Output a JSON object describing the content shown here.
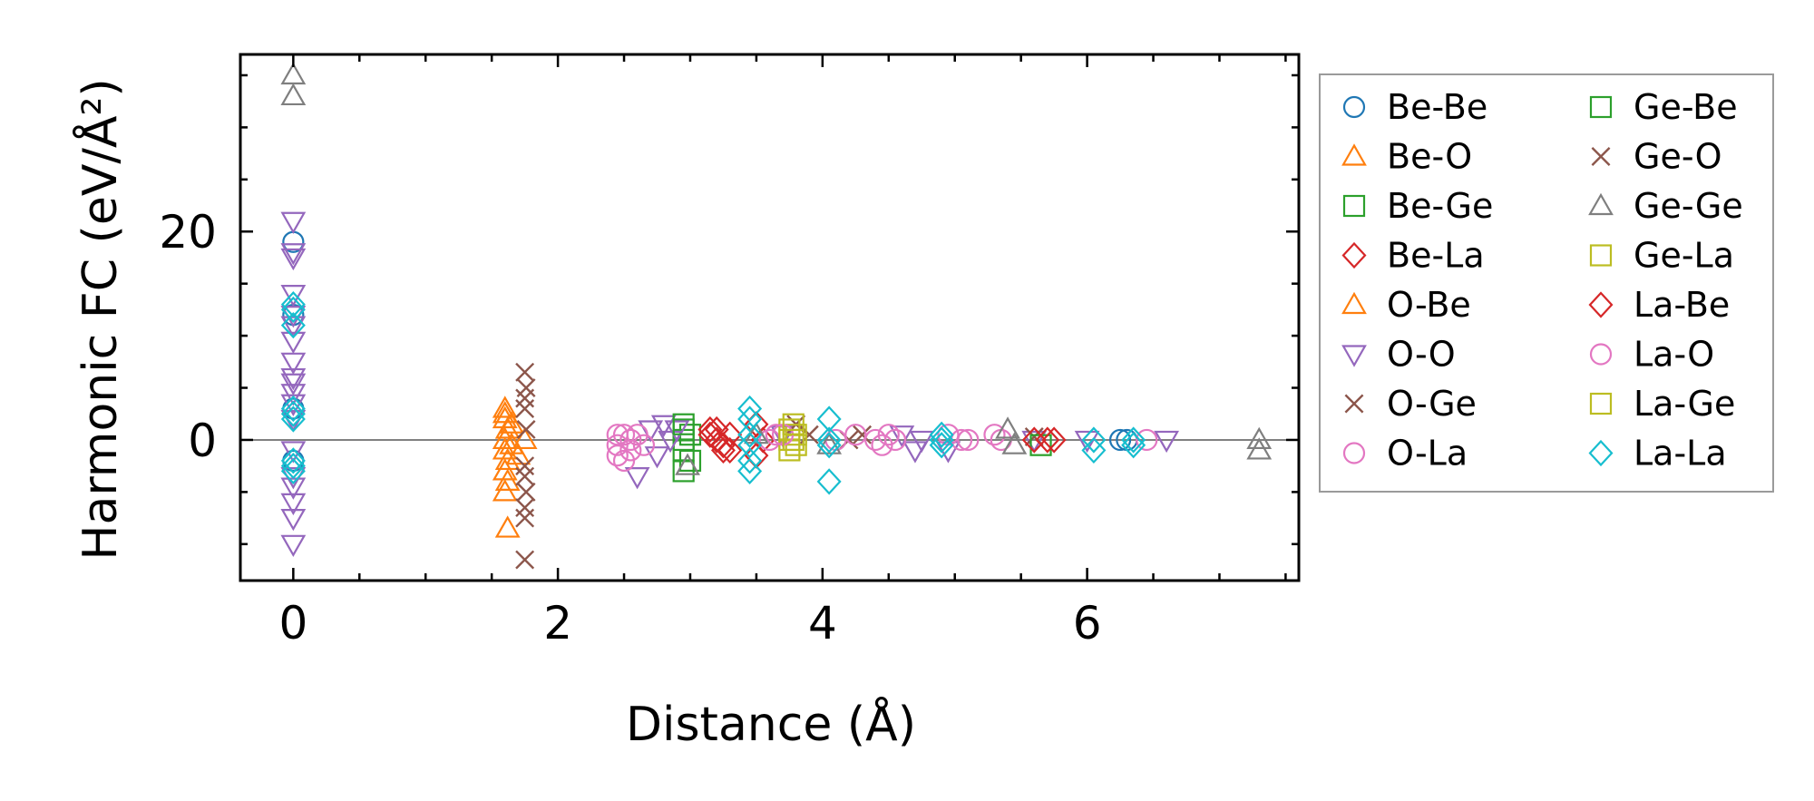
{
  "chart_data": {
    "type": "scatter",
    "xlabel": "Distance (Å)",
    "ylabel": "Harmonic FC (eV/Å²)",
    "xlim": [
      -0.4,
      7.6
    ],
    "ylim": [
      -13.5,
      37
    ],
    "x_ticks": [
      0,
      2,
      4,
      6
    ],
    "x_tick_labels": [
      "0",
      "2",
      "4",
      "6"
    ],
    "x_minor_step": 0.5,
    "y_ticks": [
      0,
      20
    ],
    "y_tick_labels": [
      "0",
      "20"
    ],
    "y_minor_step": 5,
    "zero_line": true,
    "legend_position": "outside-right",
    "series": [
      {
        "name": "Be-Be",
        "marker": "circle",
        "color": "#1f77b4",
        "points": [
          [
            0,
            3
          ],
          [
            0,
            19
          ],
          [
            0,
            -2
          ],
          [
            0,
            12
          ],
          [
            6.25,
            0
          ],
          [
            6.3,
            0
          ]
        ]
      },
      {
        "name": "Be-O",
        "marker": "triangle-up",
        "color": "#ff7f0e",
        "points": [
          [
            1.6,
            3
          ],
          [
            1.6,
            2
          ],
          [
            1.62,
            1
          ],
          [
            1.6,
            0
          ],
          [
            1.6,
            -1
          ],
          [
            1.62,
            -2
          ],
          [
            1.6,
            -3
          ],
          [
            1.62,
            -4
          ],
          [
            1.6,
            -5
          ],
          [
            1.62,
            -8.5
          ]
        ]
      },
      {
        "name": "Be-Ge",
        "marker": "square",
        "color": "#2ca02c",
        "points": [
          [
            2.95,
            1
          ],
          [
            2.95,
            0
          ],
          [
            2.95,
            -1
          ],
          [
            2.95,
            -3
          ],
          [
            3.0,
            0.5
          ]
        ]
      },
      {
        "name": "Be-La",
        "marker": "diamond",
        "color": "#d62728",
        "points": [
          [
            3.15,
            1
          ],
          [
            3.2,
            0
          ],
          [
            3.25,
            -1
          ],
          [
            3.3,
            0.5
          ],
          [
            3.5,
            1.5
          ],
          [
            3.5,
            -1.5
          ],
          [
            3.55,
            0
          ]
        ]
      },
      {
        "name": "O-Be",
        "marker": "triangle-up",
        "color": "#ff7f0e",
        "points": [
          [
            1.6,
            2.5
          ],
          [
            1.65,
            1.5
          ],
          [
            1.65,
            -0.5
          ],
          [
            1.7,
            -1.5
          ],
          [
            1.75,
            0
          ]
        ]
      },
      {
        "name": "O-O",
        "marker": "triangle-down",
        "color": "#9467bd",
        "points": [
          [
            0,
            21
          ],
          [
            0,
            18
          ],
          [
            0,
            17.5
          ],
          [
            0,
            14
          ],
          [
            0,
            12
          ],
          [
            0,
            11
          ],
          [
            0,
            9.5
          ],
          [
            0,
            7.5
          ],
          [
            0,
            6
          ],
          [
            0,
            5.5
          ],
          [
            0,
            4.5
          ],
          [
            0,
            3.5
          ],
          [
            0,
            2
          ],
          [
            0,
            -1
          ],
          [
            0,
            -3.5
          ],
          [
            0,
            -4.5
          ],
          [
            0,
            -6
          ],
          [
            0,
            -7.5
          ],
          [
            0,
            -10
          ],
          [
            2.6,
            -3.5
          ],
          [
            2.7,
            1
          ],
          [
            2.75,
            -1.5
          ],
          [
            2.8,
            1.5
          ],
          [
            2.85,
            0
          ],
          [
            2.9,
            1
          ],
          [
            3.7,
            0.5
          ],
          [
            4.6,
            0.5
          ],
          [
            4.7,
            -1
          ],
          [
            4.75,
            0
          ],
          [
            4.95,
            -1
          ],
          [
            5.6,
            0
          ],
          [
            6.0,
            0
          ],
          [
            6.6,
            0
          ]
        ]
      },
      {
        "name": "O-Ge",
        "marker": "x",
        "color": "#8c564b",
        "points": [
          [
            1.75,
            6.5
          ],
          [
            1.75,
            4
          ],
          [
            1.75,
            3
          ],
          [
            1.75,
            -2.5
          ],
          [
            1.75,
            -3.5
          ],
          [
            1.75,
            -6.5
          ],
          [
            1.75,
            -7.5
          ],
          [
            1.75,
            -11.5
          ],
          [
            3.8,
            1.5
          ],
          [
            3.9,
            0.5
          ],
          [
            4.2,
            0
          ],
          [
            4.3,
            0.5
          ],
          [
            5.6,
            0.3
          ]
        ]
      },
      {
        "name": "O-La",
        "marker": "circle",
        "color": "#e377c2",
        "points": [
          [
            2.45,
            0.5
          ],
          [
            2.45,
            -0.5
          ],
          [
            2.45,
            -1.5
          ],
          [
            2.5,
            -2
          ],
          [
            2.55,
            0
          ],
          [
            2.6,
            0.5
          ],
          [
            2.65,
            -0.5
          ],
          [
            3.6,
            0
          ],
          [
            3.65,
            0.5
          ],
          [
            4.1,
            0
          ],
          [
            4.25,
            0.5
          ],
          [
            4.4,
            0
          ],
          [
            4.5,
            0.5
          ],
          [
            4.55,
            0
          ],
          [
            4.95,
            0.5
          ],
          [
            5.1,
            0
          ],
          [
            5.3,
            0.5
          ],
          [
            5.35,
            0
          ]
        ]
      },
      {
        "name": "Ge-Be",
        "marker": "square",
        "color": "#2ca02c",
        "points": [
          [
            2.95,
            1.5
          ],
          [
            3.0,
            -2
          ],
          [
            5.65,
            -0.5
          ]
        ]
      },
      {
        "name": "Ge-O",
        "marker": "x",
        "color": "#8c564b",
        "points": [
          [
            1.76,
            5
          ],
          [
            1.76,
            1
          ],
          [
            1.76,
            -5
          ]
        ]
      },
      {
        "name": "Ge-Ge",
        "marker": "triangle-up",
        "color": "#7f7f7f",
        "points": [
          [
            0,
            35
          ],
          [
            0,
            33
          ],
          [
            2.98,
            -2.5
          ],
          [
            3.5,
            0.5
          ],
          [
            4.05,
            -0.5
          ],
          [
            5.4,
            1
          ],
          [
            5.45,
            -0.5
          ],
          [
            7.3,
            0
          ],
          [
            7.3,
            -1
          ]
        ]
      },
      {
        "name": "Ge-La",
        "marker": "square",
        "color": "#bcbd22",
        "points": [
          [
            3.75,
            1
          ],
          [
            3.75,
            0
          ],
          [
            3.75,
            -1
          ],
          [
            3.8,
            0.5
          ],
          [
            3.8,
            -0.5
          ]
        ]
      },
      {
        "name": "La-Be",
        "marker": "diamond",
        "color": "#d62728",
        "points": [
          [
            3.15,
            0.5
          ],
          [
            3.2,
            1
          ],
          [
            3.25,
            -0.5
          ],
          [
            3.3,
            -1
          ],
          [
            5.6,
            0
          ],
          [
            5.7,
            0
          ],
          [
            5.75,
            0
          ]
        ]
      },
      {
        "name": "La-O",
        "marker": "circle",
        "color": "#e377c2",
        "points": [
          [
            2.5,
            0.5
          ],
          [
            2.55,
            -1
          ],
          [
            3.7,
            0.5
          ],
          [
            4.45,
            -0.5
          ],
          [
            5.05,
            0
          ],
          [
            6.45,
            0
          ]
        ]
      },
      {
        "name": "La-Ge",
        "marker": "square",
        "color": "#bcbd22",
        "points": [
          [
            3.78,
            0
          ],
          [
            3.78,
            1.5
          ]
        ]
      },
      {
        "name": "La-La",
        "marker": "diamond",
        "color": "#17becf",
        "points": [
          [
            0,
            13
          ],
          [
            0,
            12.5
          ],
          [
            0,
            11
          ],
          [
            0,
            3
          ],
          [
            0,
            2.5
          ],
          [
            0,
            2
          ],
          [
            0,
            -2
          ],
          [
            0,
            -2.5
          ],
          [
            0,
            -3
          ],
          [
            3.45,
            3
          ],
          [
            3.45,
            2
          ],
          [
            3.45,
            0.5
          ],
          [
            3.45,
            -0.5
          ],
          [
            3.45,
            -2
          ],
          [
            3.45,
            -3
          ],
          [
            4.05,
            2
          ],
          [
            4.05,
            0
          ],
          [
            4.05,
            -0.5
          ],
          [
            4.05,
            -4
          ],
          [
            4.9,
            0.5
          ],
          [
            4.9,
            0
          ],
          [
            4.9,
            -0.5
          ],
          [
            6.05,
            0
          ],
          [
            6.05,
            -1
          ],
          [
            6.35,
            0
          ],
          [
            6.35,
            -0.5
          ]
        ]
      }
    ]
  }
}
